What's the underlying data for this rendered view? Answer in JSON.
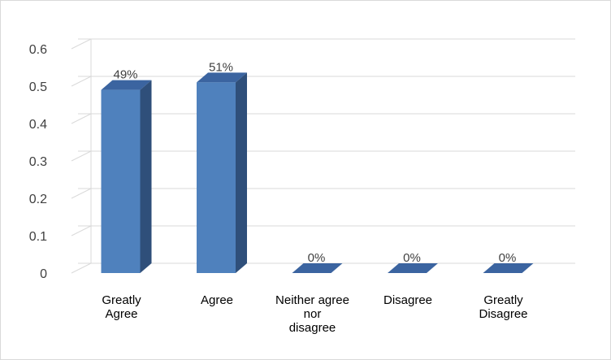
{
  "chart_data": {
    "type": "bar",
    "style": "3d-column",
    "categories": [
      [
        "Greatly",
        "Agree"
      ],
      [
        "Agree"
      ],
      [
        "Neither agree",
        "nor",
        "disagree"
      ],
      [
        "Disagree"
      ],
      [
        "Greatly",
        "Disagree"
      ]
    ],
    "values": [
      0.49,
      0.51,
      0,
      0,
      0
    ],
    "data_labels": [
      "49%",
      "51%",
      "0%",
      "0%",
      "0%"
    ],
    "yticks": [
      "0",
      "0.1",
      "0.2",
      "0.3",
      "0.4",
      "0.5",
      "0.6"
    ],
    "ylim": [
      0,
      0.6
    ],
    "grid": true,
    "legend": "none",
    "colors": {
      "front": "#4f81bd",
      "side": "#2f4f7a",
      "top": "#3b64a0",
      "grid": "#d9d9d9"
    }
  }
}
